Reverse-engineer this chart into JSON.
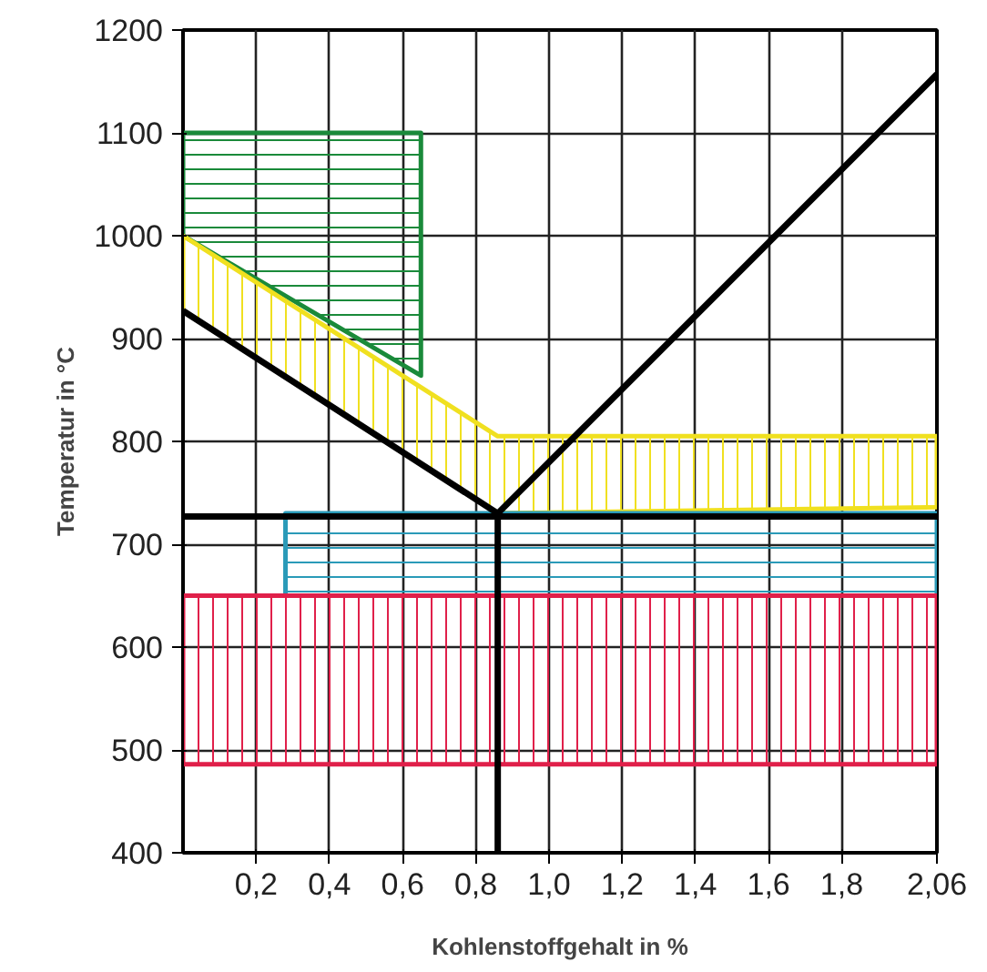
{
  "chart_data": {
    "type": "line",
    "xlabel": "Kohlenstoffgehalt in %",
    "ylabel": "Temperatur in °C",
    "xlim": [
      0,
      2.06
    ],
    "ylim": [
      400,
      1200
    ],
    "xticks": [
      {
        "value": 0.2,
        "label": "0,2"
      },
      {
        "value": 0.4,
        "label": "0,4"
      },
      {
        "value": 0.6,
        "label": "0,6"
      },
      {
        "value": 0.8,
        "label": "0,8"
      },
      {
        "value": 1.0,
        "label": "1,0"
      },
      {
        "value": 1.2,
        "label": "1,2"
      },
      {
        "value": 1.4,
        "label": "1,4"
      },
      {
        "value": 1.6,
        "label": "1,6"
      },
      {
        "value": 1.8,
        "label": "1,8"
      },
      {
        "value": 2.06,
        "label": "2,06"
      }
    ],
    "yticks": [
      400,
      500,
      600,
      700,
      800,
      900,
      1000,
      1100,
      1200
    ],
    "grid": true,
    "line_style": "solid",
    "marker": "none",
    "series": [
      {
        "type": "area",
        "color": "#1a8a3a",
        "x": [
          0,
          0.65,
          0.65,
          0,
          0
        ],
        "values": [
          1100,
          1100,
          864,
          1000,
          1100
        ]
      },
      {
        "type": "area",
        "color": "#f0e020",
        "x": [
          0,
          0.86,
          2.06,
          2.06,
          0.86,
          0,
          0
        ],
        "values": [
          1000,
          805,
          805,
          736,
          730,
          927,
          1000
        ]
      },
      {
        "type": "area",
        "color": "#2a9ab8",
        "x": [
          0.28,
          2.06,
          2.06,
          0.28,
          0.28
        ],
        "values": [
          730,
          730,
          650,
          650,
          730
        ]
      },
      {
        "type": "area",
        "color": "#e0204a",
        "x": [
          0,
          2.06,
          2.06,
          0,
          0
        ],
        "values": [
          650,
          650,
          486,
          486,
          650
        ]
      },
      {
        "type": "line",
        "color": "#000000",
        "x": [
          0,
          0.86,
          2.06
        ],
        "values": [
          927,
          730,
          1157
        ]
      },
      {
        "type": "line",
        "color": "#000000",
        "x": [
          0,
          2.06
        ],
        "values": [
          727,
          727
        ]
      },
      {
        "color": "#000000",
        "x": [
          0.86,
          0.86
        ],
        "values": [
          400,
          730
        ]
      }
    ]
  }
}
